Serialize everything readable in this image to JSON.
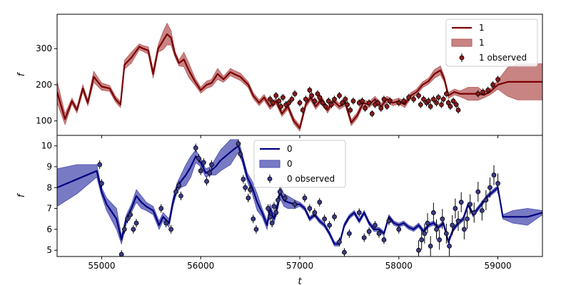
{
  "chart_data": [
    {
      "type": "line",
      "panel": "top",
      "xlabel": "",
      "ylabel": "f",
      "xlim": [
        54550,
        59450
      ],
      "ylim": [
        60,
        395
      ],
      "yticks": [
        100,
        200,
        300
      ],
      "xticks": [
        55000,
        56000,
        57000,
        58000,
        59000
      ],
      "grid": false,
      "legend_position": "top-right",
      "colors": {
        "line": "#7a0000",
        "band": "#b55a5a",
        "point": "#8a1a1a"
      },
      "series": [
        {
          "name": "1",
          "kind": "line",
          "x": [
            54550,
            54630,
            54700,
            54750,
            54810,
            54860,
            54920,
            55000,
            55080,
            55140,
            55190,
            55230,
            55300,
            55380,
            55420,
            55470,
            55520,
            55570,
            55620,
            55660,
            55700,
            55740,
            55780,
            55830,
            55880,
            55940,
            56000,
            56060,
            56110,
            56170,
            56230,
            56300,
            56350,
            56400,
            56480,
            56530,
            56590,
            56640,
            56700,
            56760,
            56820,
            56880,
            56940,
            57000,
            57060,
            57110,
            57160,
            57220,
            57280,
            57340,
            57400,
            57460,
            57520,
            57580,
            57640,
            57700,
            57760,
            57820,
            57880,
            57940,
            58000,
            58060,
            58120,
            58180,
            58240,
            58300,
            58360,
            58420,
            58460,
            58500,
            58560,
            58620,
            58700,
            58800,
            58860,
            58920,
            59000,
            59100,
            59200,
            59300,
            59450
          ],
          "y": [
            180,
            105,
            155,
            130,
            190,
            150,
            222,
            195,
            190,
            160,
            145,
            255,
            275,
            305,
            300,
            295,
            230,
            300,
            322,
            340,
            330,
            285,
            260,
            270,
            240,
            210,
            185,
            200,
            205,
            230,
            215,
            235,
            228,
            222,
            200,
            170,
            150,
            165,
            140,
            155,
            120,
            140,
            100,
            80,
            145,
            165,
            140,
            160,
            130,
            155,
            140,
            150,
            95,
            115,
            150,
            145,
            160,
            140,
            160,
            150,
            155,
            145,
            170,
            180,
            200,
            210,
            230,
            240,
            215,
            170,
            180,
            175,
            175,
            175,
            172,
            180,
            200,
            208,
            208,
            208,
            208
          ]
        },
        {
          "name": "1",
          "kind": "band",
          "band_halfwidth": [
            30,
            15,
            8,
            8,
            10,
            8,
            15,
            10,
            8,
            8,
            8,
            12,
            15,
            8,
            8,
            10,
            12,
            10,
            25,
            30,
            20,
            8,
            8,
            20,
            20,
            10,
            8,
            10,
            10,
            15,
            8,
            10,
            10,
            10,
            8,
            8,
            8,
            8,
            8,
            8,
            8,
            8,
            8,
            8,
            8,
            8,
            8,
            8,
            8,
            8,
            8,
            8,
            8,
            8,
            8,
            8,
            8,
            8,
            8,
            8,
            8,
            8,
            8,
            8,
            8,
            8,
            12,
            12,
            8,
            8,
            8,
            8,
            18,
            18,
            8,
            8,
            12,
            40,
            50,
            50,
            50
          ]
        },
        {
          "name": "1 observed",
          "kind": "scatter",
          "x": [
            56700,
            56730,
            56760,
            56790,
            56810,
            56830,
            56860,
            56890,
            56920,
            56950,
            57000,
            57030,
            57060,
            57100,
            57120,
            57150,
            57180,
            57200,
            57230,
            57260,
            57290,
            57320,
            57350,
            57400,
            57430,
            57460,
            57480,
            57510,
            57540,
            57600,
            57630,
            57660,
            57700,
            57730,
            57760,
            57790,
            57820,
            57850,
            57880,
            57910,
            58000,
            58050,
            58100,
            58150,
            58200,
            58220,
            58250,
            58280,
            58300,
            58320,
            58350,
            58380,
            58400,
            58430,
            58450,
            58480,
            58500,
            58520,
            58550,
            58580,
            58600,
            58800,
            58850,
            58900,
            58950,
            59000
          ],
          "y": [
            160,
            150,
            170,
            155,
            140,
            165,
            145,
            150,
            160,
            175,
            150,
            130,
            160,
            185,
            170,
            155,
            175,
            165,
            150,
            140,
            155,
            145,
            160,
            170,
            150,
            160,
            145,
            130,
            155,
            150,
            155,
            135,
            150,
            120,
            145,
            150,
            135,
            160,
            140,
            155,
            150,
            155,
            165,
            160,
            170,
            145,
            160,
            150,
            155,
            140,
            160,
            150,
            165,
            145,
            160,
            175,
            150,
            140,
            155,
            145,
            130,
            175,
            180,
            185,
            200,
            215
          ]
        }
      ],
      "legend": [
        {
          "kind": "line",
          "label": "1"
        },
        {
          "kind": "band",
          "label": "1"
        },
        {
          "kind": "scatter",
          "label": "1 observed"
        }
      ]
    },
    {
      "type": "line",
      "panel": "bottom",
      "xlabel": "t",
      "ylabel": "f",
      "xlim": [
        54550,
        59450
      ],
      "ylim": [
        4.7,
        10.5
      ],
      "yticks": [
        5,
        6,
        7,
        8,
        9,
        10
      ],
      "xticks": [
        55000,
        56000,
        57000,
        58000,
        59000
      ],
      "xticklabels": [
        "55000",
        "56000",
        "57000",
        "58000",
        "59000"
      ],
      "grid": false,
      "legend_position": "upper-center",
      "colors": {
        "line": "#000080",
        "band": "#4b4fb0",
        "point": "#3b3b8a"
      },
      "series": [
        {
          "name": "0",
          "kind": "line",
          "x": [
            54550,
            54750,
            54950,
            55000,
            55050,
            55150,
            55200,
            55250,
            55300,
            55350,
            55400,
            55450,
            55520,
            55580,
            55620,
            55680,
            55720,
            55760,
            55800,
            55850,
            55900,
            55950,
            56000,
            56050,
            56100,
            56150,
            56200,
            56300,
            56380,
            56420,
            56470,
            56520,
            56570,
            56620,
            56670,
            56700,
            56740,
            56780,
            56800,
            56840,
            56880,
            56950,
            57000,
            57050,
            57100,
            57150,
            57200,
            57250,
            57300,
            57350,
            57400,
            57450,
            57500,
            57550,
            57600,
            57650,
            57700,
            57750,
            57800,
            57850,
            57900,
            57950,
            58000,
            58050,
            58100,
            58150,
            58200,
            58250,
            58300,
            58350,
            58400,
            58450,
            58500,
            58550,
            58600,
            58650,
            58700,
            58750,
            58800,
            58850,
            58900,
            58950,
            59000,
            59050,
            59150,
            59300,
            59450
          ],
          "y": [
            8.0,
            8.4,
            8.8,
            7.8,
            7.2,
            6.5,
            5.5,
            6.5,
            7.0,
            7.6,
            7.3,
            7.1,
            6.9,
            6.2,
            6.6,
            6.3,
            7.3,
            8.0,
            8.3,
            8.6,
            9.0,
            9.5,
            9.2,
            8.7,
            8.8,
            9.0,
            9.3,
            9.7,
            10.0,
            9.4,
            8.5,
            8.0,
            7.3,
            6.8,
            6.2,
            7.0,
            6.5,
            7.2,
            7.8,
            7.4,
            7.3,
            7.2,
            7.2,
            7.0,
            6.5,
            6.7,
            6.4,
            6.2,
            5.8,
            5.3,
            5.3,
            6.2,
            6.6,
            6.8,
            6.4,
            6.8,
            6.3,
            6.0,
            6.0,
            5.8,
            6.6,
            6.3,
            6.2,
            6.3,
            6.1,
            6.0,
            6.2,
            5.9,
            6.2,
            6.3,
            6.1,
            6.3,
            5.4,
            6.0,
            6.3,
            6.5,
            7.2,
            6.7,
            7.0,
            7.3,
            7.6,
            7.8,
            8.0,
            6.6,
            6.6,
            6.6,
            6.8
          ]
        },
        {
          "name": "0",
          "kind": "band",
          "band_halfwidth": [
            0.9,
            0.7,
            0.3,
            0.2,
            0.3,
            0.5,
            0.2,
            0.2,
            0.2,
            0.3,
            0.3,
            0.2,
            0.2,
            0.2,
            0.2,
            0.2,
            0.2,
            0.2,
            0.3,
            0.5,
            0.5,
            0.3,
            0.2,
            0.2,
            0.2,
            0.4,
            0.5,
            0.6,
            0.3,
            0.2,
            0.2,
            0.3,
            0.4,
            0.2,
            0.2,
            0.2,
            0.2,
            0.2,
            0.3,
            0.3,
            0.3,
            0.2,
            0.1,
            0.1,
            0.1,
            0.1,
            0.1,
            0.1,
            0.1,
            0.1,
            0.1,
            0.1,
            0.1,
            0.1,
            0.1,
            0.1,
            0.1,
            0.1,
            0.1,
            0.1,
            0.1,
            0.1,
            0.1,
            0.1,
            0.1,
            0.1,
            0.1,
            0.1,
            0.1,
            0.1,
            0.1,
            0.1,
            0.1,
            0.1,
            0.1,
            0.1,
            0.1,
            0.1,
            0.1,
            0.1,
            0.1,
            0.1,
            0.1,
            0.1,
            0.3,
            0.4,
            0.1
          ]
        },
        {
          "name": "0 observed",
          "kind": "scatter",
          "x": [
            54980,
            55000,
            55200,
            55230,
            55260,
            55290,
            55320,
            55350,
            55600,
            55650,
            55700,
            55750,
            55780,
            55800,
            55950,
            55980,
            56000,
            56030,
            56060,
            56090,
            56110,
            56380,
            56400,
            56430,
            56450,
            56480,
            56500,
            56530,
            56560,
            56680,
            56700,
            56720,
            56740,
            56760,
            56780,
            56800,
            56850,
            56950,
            57050,
            57100,
            57150,
            57200,
            57250,
            57300,
            57350,
            57400,
            57450,
            57500,
            57600,
            57650,
            57700,
            57760,
            57800,
            57850,
            57900,
            58000,
            58200,
            58230,
            58260,
            58290,
            58320,
            58350,
            58380,
            58410,
            58440,
            58480,
            58510,
            58540,
            58570,
            58600,
            58630,
            58660,
            58690,
            58720,
            58760,
            58800,
            58840,
            58880,
            58920,
            58960,
            59000
          ],
          "y": [
            9.1,
            8.2,
            4.8,
            6.0,
            6.5,
            6.7,
            6.0,
            6.3,
            7.0,
            6.3,
            6.0,
            7.8,
            8.1,
            7.6,
            9.9,
            9.4,
            8.8,
            9.2,
            8.3,
            8.7,
            9.1,
            10.1,
            9.6,
            8.4,
            8.0,
            7.5,
            7.9,
            6.5,
            6.0,
            7.0,
            6.6,
            6.3,
            7.1,
            6.8,
            7.4,
            7.8,
            7.5,
            7.2,
            7.5,
            7.0,
            6.8,
            7.3,
            6.5,
            6.2,
            6.6,
            5.4,
            4.9,
            5.8,
            6.8,
            5.6,
            5.9,
            6.2,
            5.8,
            5.5,
            6.4,
            6.0,
            5.0,
            5.5,
            5.8,
            6.3,
            5.2,
            6.8,
            6.0,
            5.5,
            6.5,
            5.8,
            5.2,
            6.2,
            7.0,
            6.4,
            7.3,
            6.0,
            6.5,
            7.2,
            6.8,
            7.8,
            6.9,
            7.4,
            8.0,
            8.6,
            8.2
          ]
        }
      ],
      "legend": [
        {
          "kind": "line",
          "label": "0"
        },
        {
          "kind": "band",
          "label": "0"
        },
        {
          "kind": "scatter",
          "label": "0 observed"
        }
      ]
    }
  ]
}
